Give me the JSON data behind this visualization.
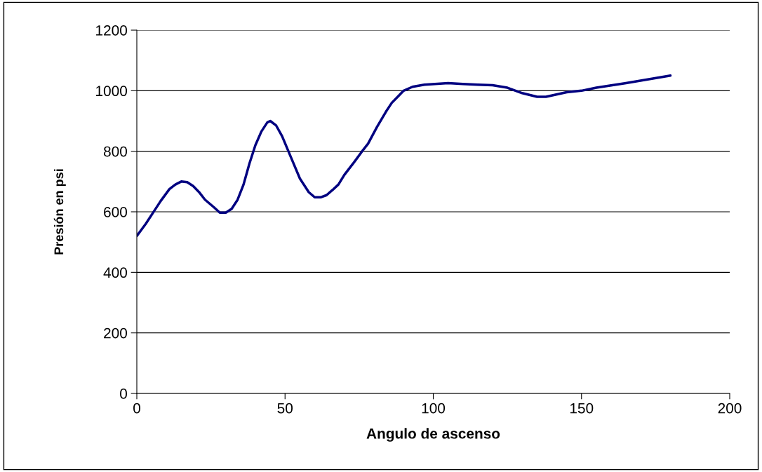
{
  "chart_data": {
    "type": "line",
    "xlabel": "Angulo de ascenso",
    "ylabel": "Presión en psi",
    "series": [
      {
        "color": "#000080",
        "x": [
          0,
          3,
          6,
          8,
          11,
          13,
          15,
          17,
          19,
          21,
          23,
          26,
          28,
          30,
          32,
          34,
          36,
          38,
          40,
          42,
          44,
          45,
          47,
          49,
          52,
          55,
          58,
          60,
          62,
          64,
          66,
          68,
          70,
          73,
          76,
          78,
          81,
          84,
          86,
          88,
          90,
          93,
          97,
          105,
          110,
          115,
          120,
          125,
          130,
          135,
          138,
          145,
          150,
          155,
          165,
          180
        ],
        "values": [
          520,
          560,
          605,
          635,
          675,
          690,
          700,
          698,
          685,
          665,
          640,
          615,
          597,
          597,
          610,
          640,
          690,
          760,
          820,
          865,
          895,
          900,
          885,
          850,
          780,
          710,
          665,
          648,
          648,
          655,
          672,
          690,
          722,
          760,
          800,
          825,
          880,
          930,
          960,
          980,
          1000,
          1013,
          1020,
          1025,
          1022,
          1020,
          1018,
          1010,
          992,
          980,
          980,
          995,
          1000,
          1010,
          1025,
          1050
        ]
      }
    ],
    "xlim": [
      0,
      200
    ],
    "xticks": [
      0,
      50,
      100,
      150,
      200
    ],
    "ylim": [
      0,
      1200
    ],
    "yticks": [
      0,
      200,
      400,
      600,
      800,
      1000,
      1200
    ],
    "grid": "y",
    "legend": false
  }
}
